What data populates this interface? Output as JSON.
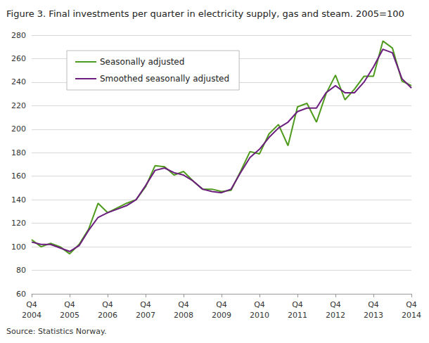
{
  "chart_data": {
    "type": "line",
    "title": "Figure 3. Final investments per quarter in electricity supply, gas and steam. 2005=100",
    "source": "Source: Statistics Norway.",
    "categories": [
      "Q4\n2004",
      null,
      null,
      null,
      "Q4\n2005",
      null,
      null,
      null,
      "Q4\n2006",
      null,
      null,
      null,
      "Q4\n2007",
      null,
      null,
      null,
      "Q4\n2008",
      null,
      null,
      null,
      "Q4\n2009",
      null,
      null,
      null,
      "Q4\n2010",
      null,
      null,
      null,
      "Q4\n2011",
      null,
      null,
      null,
      "Q4\n2012",
      null,
      null,
      null,
      "Q4\n2013",
      null,
      null,
      null,
      "Q4\n2014"
    ],
    "series": [
      {
        "name": "Seasonally adjusted",
        "color": "#4e9a1c",
        "values": [
          106,
          100,
          103,
          100,
          94,
          102,
          115,
          137,
          129,
          133,
          137,
          140,
          151,
          169,
          168,
          161,
          164,
          156,
          149,
          149,
          147,
          148,
          164,
          181,
          179,
          196,
          204,
          186,
          219,
          222,
          206,
          230,
          246,
          225,
          234,
          245,
          245,
          275,
          269,
          241,
          237
        ]
      },
      {
        "name": "Smoothed seasonally adjusted",
        "color": "#6b1e7e",
        "values": [
          104,
          102,
          102,
          99,
          96,
          101,
          114,
          125,
          129,
          132,
          135,
          140,
          152,
          165,
          167,
          163,
          161,
          156,
          149,
          147,
          146,
          149,
          163,
          176,
          183,
          193,
          201,
          206,
          215,
          218,
          218,
          231,
          237,
          231,
          231,
          240,
          253,
          268,
          265,
          243,
          235
        ]
      }
    ],
    "ylim": [
      60,
      280
    ],
    "yticks": [
      60,
      80,
      100,
      120,
      140,
      160,
      180,
      200,
      220,
      240,
      260,
      280
    ],
    "grid": true,
    "legend": "upper left"
  }
}
